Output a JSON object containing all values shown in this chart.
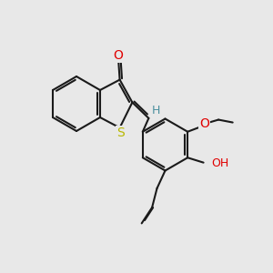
{
  "bg_color": "#e8e8e8",
  "bond_color": "#1a1a1a",
  "bond_width": 1.5,
  "atom_colors": {
    "O": "#e00000",
    "S": "#b8b800",
    "H": "#4a8f9e",
    "C": "#1a1a1a"
  }
}
